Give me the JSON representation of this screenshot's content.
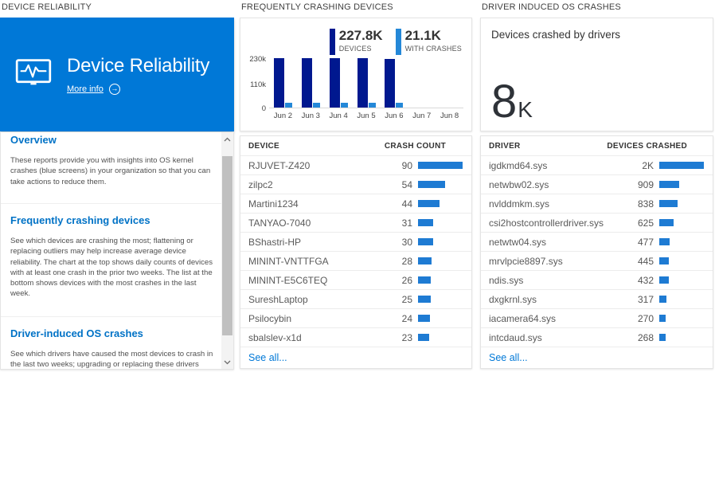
{
  "colors": {
    "accent": "#0078d7",
    "tile_bg": "#0078d7",
    "dark_bar": "#00188f",
    "light_bar": "#2488d8",
    "table_bar": "#1e7bd3",
    "kpi_number": "#2e3238"
  },
  "left": {
    "header": "DEVICE RELIABILITY",
    "tile": {
      "title": "Device Reliability",
      "more_info_label": "More info",
      "arrow_glyph": "→"
    },
    "sections": [
      {
        "heading": "Overview",
        "body": "These reports provide you with insights into OS kernel crashes (blue screens) in your organization so that you can take actions to reduce them."
      },
      {
        "heading": "Frequently crashing devices",
        "body": "See which devices are crashing the most; flattening or replacing outliers may help increase average device reliability. The chart at the top shows daily counts of devices with at least one crash in the prior two weeks. The list at the bottom shows devices with the most crashes in the last week."
      },
      {
        "heading": "Driver-induced OS crashes",
        "body": "See which drivers have caused the most devices to crash in the last two weeks; upgrading or replacing these drivers"
      }
    ]
  },
  "middle": {
    "header": "FREQUENTLY CRASHING DEVICES",
    "table": {
      "columns": [
        "DEVICE",
        "CRASH COUNT"
      ],
      "max": 90,
      "rows": [
        {
          "label": "RJUVET-Z420",
          "value": 90,
          "display": "90"
        },
        {
          "label": "zilpc2",
          "value": 54,
          "display": "54"
        },
        {
          "label": "Martini1234",
          "value": 44,
          "display": "44"
        },
        {
          "label": "TANYAO-7040",
          "value": 31,
          "display": "31"
        },
        {
          "label": "BShastri-HP",
          "value": 30,
          "display": "30"
        },
        {
          "label": "MININT-VNTTFGA",
          "value": 28,
          "display": "28"
        },
        {
          "label": "MININT-E5C6TEQ",
          "value": 26,
          "display": "26"
        },
        {
          "label": "SureshLaptop",
          "value": 25,
          "display": "25"
        },
        {
          "label": "Psilocybin",
          "value": 24,
          "display": "24"
        },
        {
          "label": "sbalslev-x1d",
          "value": 23,
          "display": "23"
        }
      ],
      "see_all": "See all..."
    }
  },
  "right": {
    "header": "DRIVER INDUCED OS CRASHES",
    "kpi": {
      "label": "Devices crashed by drivers",
      "number": "8",
      "unit": "K"
    },
    "table": {
      "columns": [
        "DRIVER",
        "DEVICES CRASHED"
      ],
      "max": 2000,
      "rows": [
        {
          "label": "igdkmd64.sys",
          "value": 2000,
          "display": "2K"
        },
        {
          "label": "netwbw02.sys",
          "value": 909,
          "display": "909"
        },
        {
          "label": "nvlddmkm.sys",
          "value": 838,
          "display": "838"
        },
        {
          "label": "csi2hostcontrollerdriver.sys",
          "value": 625,
          "display": "625"
        },
        {
          "label": "netwtw04.sys",
          "value": 477,
          "display": "477"
        },
        {
          "label": "mrvlpcie8897.sys",
          "value": 445,
          "display": "445"
        },
        {
          "label": "ndis.sys",
          "value": 432,
          "display": "432"
        },
        {
          "label": "dxgkrnl.sys",
          "value": 317,
          "display": "317"
        },
        {
          "label": "iacamera64.sys",
          "value": 270,
          "display": "270"
        },
        {
          "label": "intcdaud.sys",
          "value": 268,
          "display": "268"
        }
      ],
      "see_all": "See all..."
    }
  },
  "chart_data": {
    "type": "bar",
    "categories": [
      "Jun 2",
      "Jun 3",
      "Jun 4",
      "Jun 5",
      "Jun 6",
      "Jun 7",
      "Jun 8"
    ],
    "series": [
      {
        "name": "DEVICES",
        "total_label": "227.8K",
        "color": "#00188f",
        "values": [
          229000,
          229000,
          229000,
          229000,
          226000,
          0,
          0
        ]
      },
      {
        "name": "WITH CRASHES",
        "total_label": "21.1K",
        "color": "#2488d8",
        "values": [
          21000,
          21000,
          21000,
          21000,
          21000,
          0,
          0
        ]
      }
    ],
    "y_ticks": [
      "230k",
      "110k",
      "0"
    ],
    "ylim": [
      0,
      230000
    ],
    "legend_position": "top-right",
    "grid": false
  }
}
